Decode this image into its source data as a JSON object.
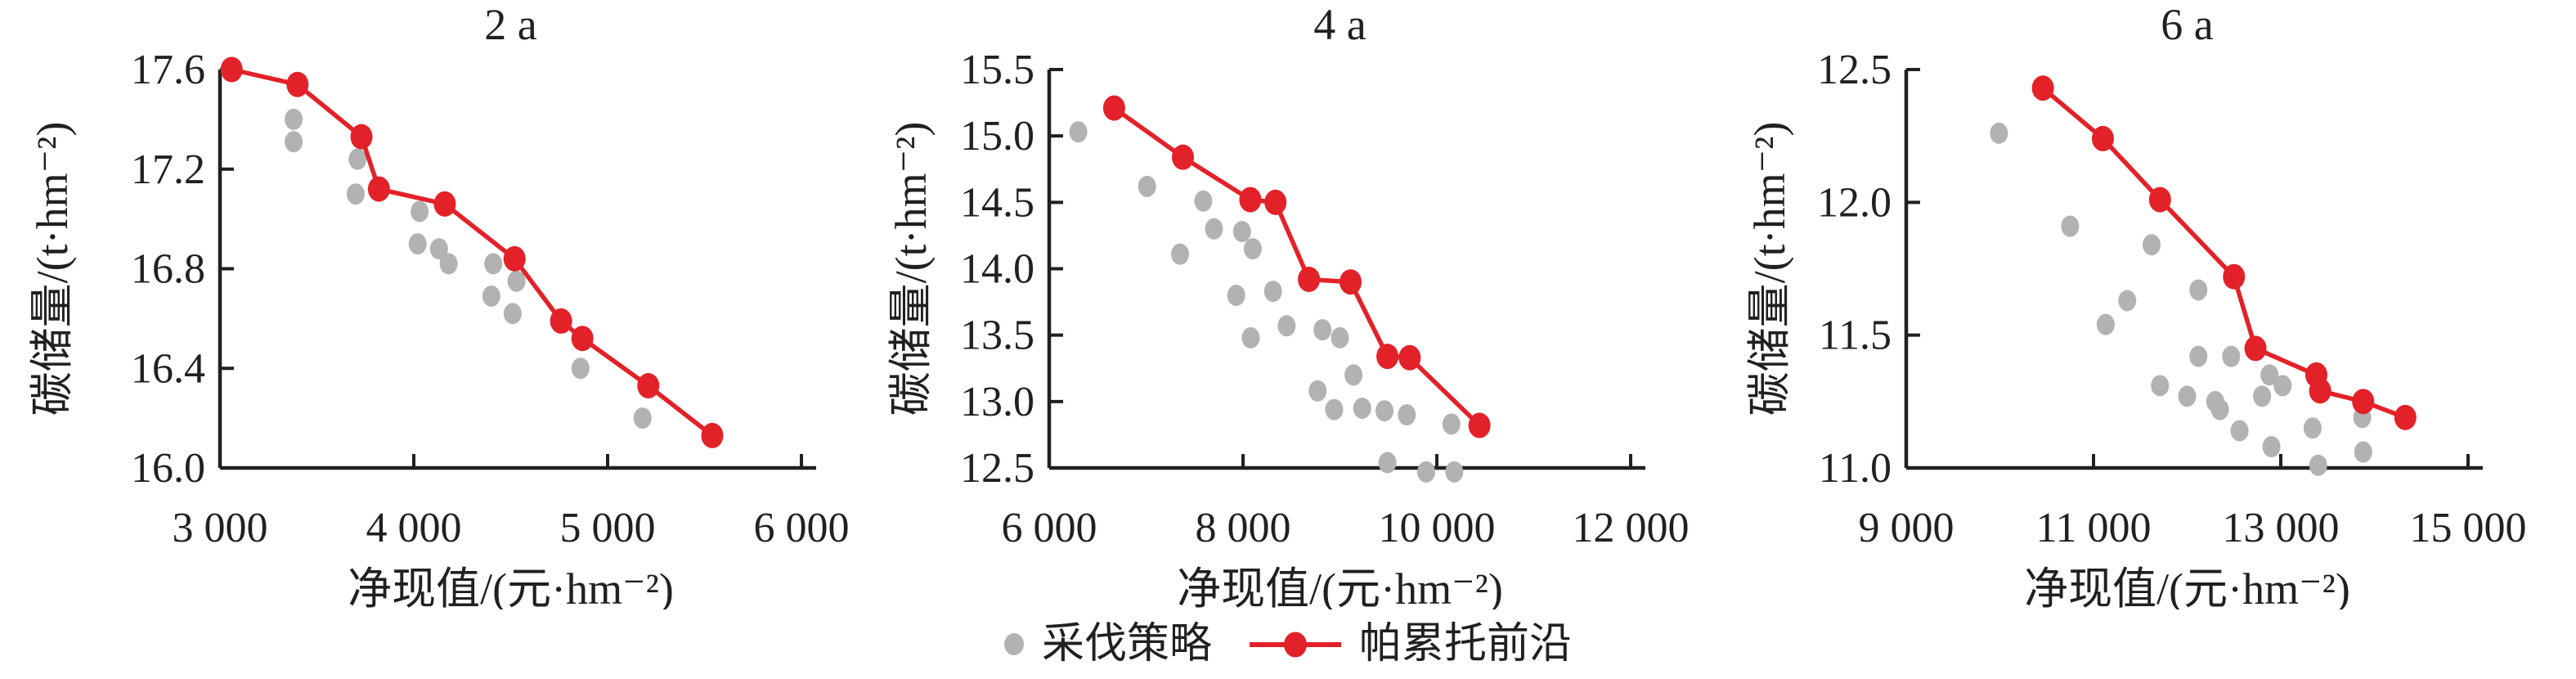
{
  "figure": {
    "legend": {
      "strategy_label": "采伐策略",
      "pareto_label": "帕累托前沿"
    },
    "colors": {
      "pareto_red": "#e32128",
      "strategy_gray": "#b2b2b2",
      "axis": "#231f20",
      "text": "#231f20",
      "background": "#ffffff"
    }
  },
  "chart_data": [
    {
      "type": "scatter",
      "title": "2 a",
      "xlabel": "净现值/(元·hm⁻²)",
      "ylabel": "碳储量/(t·hm⁻²)",
      "xlim": [
        3000,
        6000
      ],
      "ylim": [
        16.0,
        17.6
      ],
      "xticks": [
        3000,
        4000,
        5000,
        6000
      ],
      "xtick_labels": [
        "3 000",
        "4 000",
        "5 000",
        "6 000"
      ],
      "yticks": [
        16.0,
        16.4,
        16.8,
        17.2,
        17.6
      ],
      "ytick_labels": [
        "16.0",
        "16.4",
        "16.8",
        "17.2",
        "17.6"
      ],
      "grid": false,
      "series": [
        {
          "name": "采伐策略",
          "kind": "points",
          "points": [
            [
              3380,
              17.4
            ],
            [
              3380,
              17.31
            ],
            [
              3710,
              17.24
            ],
            [
              3700,
              17.1
            ],
            [
              4030,
              17.03
            ],
            [
              4020,
              16.9
            ],
            [
              4130,
              16.88
            ],
            [
              4180,
              16.82
            ],
            [
              4410,
              16.82
            ],
            [
              4530,
              16.75
            ],
            [
              4400,
              16.69
            ],
            [
              4510,
              16.62
            ],
            [
              4860,
              16.4
            ],
            [
              5180,
              16.2
            ]
          ]
        },
        {
          "name": "帕累托前沿",
          "kind": "line+points",
          "points": [
            [
              3060,
              17.6
            ],
            [
              3400,
              17.54
            ],
            [
              3730,
              17.33
            ],
            [
              3820,
              17.12
            ],
            [
              4160,
              17.06
            ],
            [
              4520,
              16.84
            ],
            [
              4760,
              16.59
            ],
            [
              4870,
              16.52
            ],
            [
              5210,
              16.33
            ],
            [
              5540,
              16.13
            ]
          ]
        }
      ]
    },
    {
      "type": "scatter",
      "title": "4 a",
      "xlabel": "净现值/(元·hm⁻²)",
      "ylabel": "碳储量/(t·hm⁻²)",
      "xlim": [
        6000,
        12000
      ],
      "ylim": [
        12.5,
        15.5
      ],
      "xticks": [
        6000,
        8000,
        10000,
        12000
      ],
      "xtick_labels": [
        "6 000",
        "8 000",
        "10 000",
        "12 000"
      ],
      "yticks": [
        12.5,
        13.0,
        13.5,
        14.0,
        14.5,
        15.0,
        15.5
      ],
      "ytick_labels": [
        "12.5",
        "13.0",
        "13.5",
        "14.0",
        "14.5",
        "15.0",
        "15.5"
      ],
      "grid": false,
      "series": [
        {
          "name": "采伐策略",
          "kind": "points",
          "points": [
            [
              6300,
              15.03
            ],
            [
              7010,
              14.62
            ],
            [
              7590,
              14.51
            ],
            [
              7700,
              14.3
            ],
            [
              7990,
              14.28
            ],
            [
              8100,
              14.15
            ],
            [
              7350,
              14.11
            ],
            [
              7930,
              13.8
            ],
            [
              8310,
              13.83
            ],
            [
              8450,
              13.57
            ],
            [
              8820,
              13.54
            ],
            [
              9000,
              13.48
            ],
            [
              8080,
              13.48
            ],
            [
              9140,
              13.2
            ],
            [
              8770,
              13.08
            ],
            [
              8940,
              12.94
            ],
            [
              9230,
              12.95
            ],
            [
              9460,
              12.93
            ],
            [
              9690,
              12.9
            ],
            [
              10150,
              12.83
            ],
            [
              9490,
              12.54
            ],
            [
              9890,
              12.47
            ],
            [
              10180,
              12.47
            ]
          ]
        },
        {
          "name": "帕累托前沿",
          "kind": "line+points",
          "points": [
            [
              6670,
              15.21
            ],
            [
              7380,
              14.84
            ],
            [
              8075,
              14.52
            ],
            [
              8335,
              14.5
            ],
            [
              8680,
              13.92
            ],
            [
              9110,
              13.9
            ],
            [
              9490,
              13.34
            ],
            [
              9720,
              13.33
            ],
            [
              10440,
              12.82
            ]
          ]
        }
      ]
    },
    {
      "type": "scatter",
      "title": "6 a",
      "xlabel": "净现值/(元·hm⁻²)",
      "ylabel": "碳储量/(t·hm⁻²)",
      "xlim": [
        9000,
        15000
      ],
      "ylim": [
        11.0,
        12.5
      ],
      "xticks": [
        9000,
        11000,
        13000,
        15000
      ],
      "xtick_labels": [
        "9 000",
        "11 000",
        "13 000",
        "15 000"
      ],
      "yticks": [
        11.0,
        11.5,
        12.0,
        12.5
      ],
      "ytick_labels": [
        "11.0",
        "11.5",
        "12.0",
        "12.5"
      ],
      "grid": false,
      "series": [
        {
          "name": "采伐策略",
          "kind": "points",
          "points": [
            [
              9990,
              12.26
            ],
            [
              10750,
              11.91
            ],
            [
              11620,
              11.84
            ],
            [
              12120,
              11.67
            ],
            [
              11360,
              11.63
            ],
            [
              11130,
              11.54
            ],
            [
              12120,
              11.42
            ],
            [
              12470,
              11.42
            ],
            [
              11710,
              11.31
            ],
            [
              12000,
              11.27
            ],
            [
              12300,
              11.25
            ],
            [
              12350,
              11.22
            ],
            [
              12880,
              11.35
            ],
            [
              13020,
              11.31
            ],
            [
              12800,
              11.27
            ],
            [
              12560,
              11.14
            ],
            [
              12900,
              11.08
            ],
            [
              13340,
              11.15
            ],
            [
              13870,
              11.19
            ],
            [
              13880,
              11.06
            ],
            [
              13400,
              11.01
            ]
          ]
        },
        {
          "name": "帕累托前沿",
          "kind": "line+points",
          "points": [
            [
              10460,
              12.43
            ],
            [
              11100,
              12.24
            ],
            [
              11710,
              12.01
            ],
            [
              12500,
              11.72
            ],
            [
              12730,
              11.45
            ],
            [
              13380,
              11.35
            ],
            [
              13420,
              11.29
            ],
            [
              13880,
              11.25
            ],
            [
              14330,
              11.19
            ]
          ]
        }
      ]
    }
  ]
}
